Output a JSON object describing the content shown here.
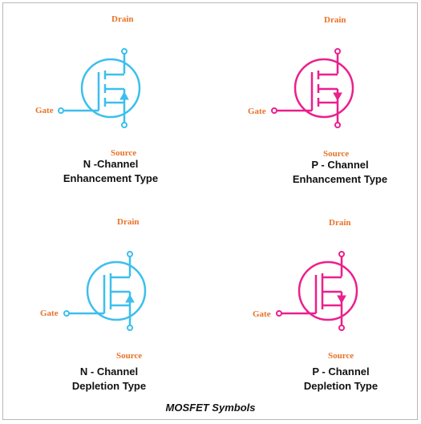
{
  "colors": {
    "n_channel": "#3cbfee",
    "p_channel": "#ec1f8d",
    "labels": "#e8722a",
    "text": "#111111"
  },
  "pins": {
    "drain": "Drain",
    "gate": "Gate",
    "source": "Source"
  },
  "symbols": [
    {
      "id": "n-enh",
      "line1": "N -Channel",
      "line2": "Enhancement Type",
      "channel": "N",
      "mode": "enhancement"
    },
    {
      "id": "p-enh",
      "line1": "P - Channel",
      "line2": "Enhancement Type",
      "channel": "P",
      "mode": "enhancement"
    },
    {
      "id": "n-dep",
      "line1": "N - Channel",
      "line2": "Depletion Type",
      "channel": "N",
      "mode": "depletion"
    },
    {
      "id": "p-dep",
      "line1": "P - Channel",
      "line2": "Depletion Type",
      "channel": "P",
      "mode": "depletion"
    }
  ],
  "figure_caption": "MOSFET Symbols"
}
